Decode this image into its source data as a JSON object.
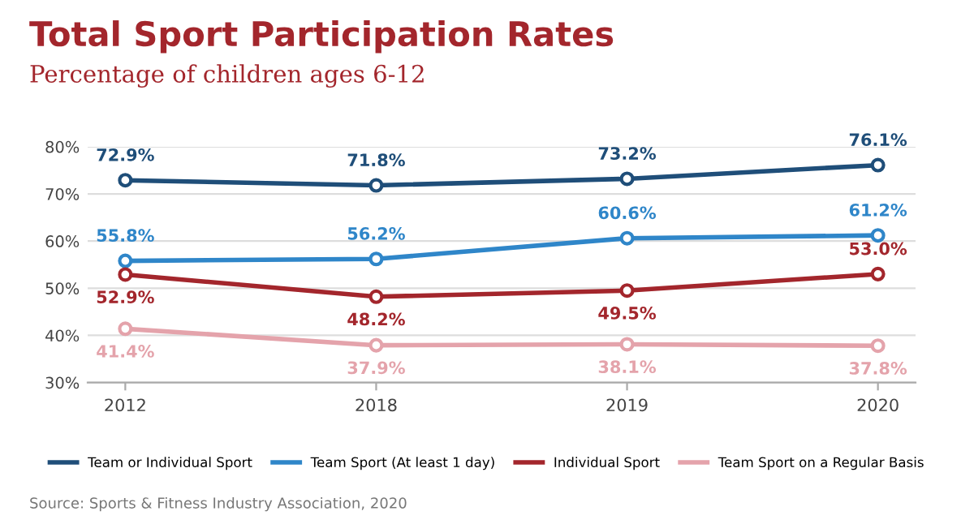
{
  "chart_data": {
    "type": "line",
    "title": "Total Sport Participation Rates",
    "subtitle": "Percentage of children ages 6-12",
    "categories": [
      "2012",
      "2018",
      "2019",
      "2020"
    ],
    "series": [
      {
        "name": "Team or Individual Sport",
        "color": "#1f4e79",
        "values": [
          72.9,
          71.8,
          73.2,
          76.1
        ],
        "value_labels": [
          "72.9%",
          "71.8%",
          "73.2%",
          "76.1%"
        ]
      },
      {
        "name": "Team Sport (At least 1 day)",
        "color": "#2f86c9",
        "values": [
          55.8,
          56.2,
          60.6,
          61.2
        ],
        "value_labels": [
          "55.8%",
          "56.2%",
          "60.6%",
          "61.2%"
        ]
      },
      {
        "name": "Individual Sport",
        "color": "#a3262c",
        "values": [
          52.9,
          48.2,
          49.5,
          53.0
        ],
        "value_labels": [
          "52.9%",
          "48.2%",
          "49.5%",
          "53.0%"
        ]
      },
      {
        "name": "Team Sport on a Regular Basis",
        "color": "#e4a3ab",
        "values": [
          41.4,
          37.9,
          38.1,
          37.8
        ],
        "value_labels": [
          "41.4%",
          "37.9%",
          "38.1%",
          "37.8%"
        ]
      }
    ],
    "ylim": [
      30,
      80
    ],
    "yticks": [
      {
        "value": 30,
        "label": "30%"
      },
      {
        "value": 40,
        "label": "40%"
      },
      {
        "value": 50,
        "label": "50%"
      },
      {
        "value": 60,
        "label": "60%"
      },
      {
        "value": 70,
        "label": "70%"
      },
      {
        "value": 80,
        "label": "80%"
      }
    ],
    "grid": "y",
    "legend": "bottom",
    "marker": "circle",
    "line_style": "solid",
    "annotations": [
      "Source: Sports & Fitness Industry Association, 2020"
    ]
  }
}
